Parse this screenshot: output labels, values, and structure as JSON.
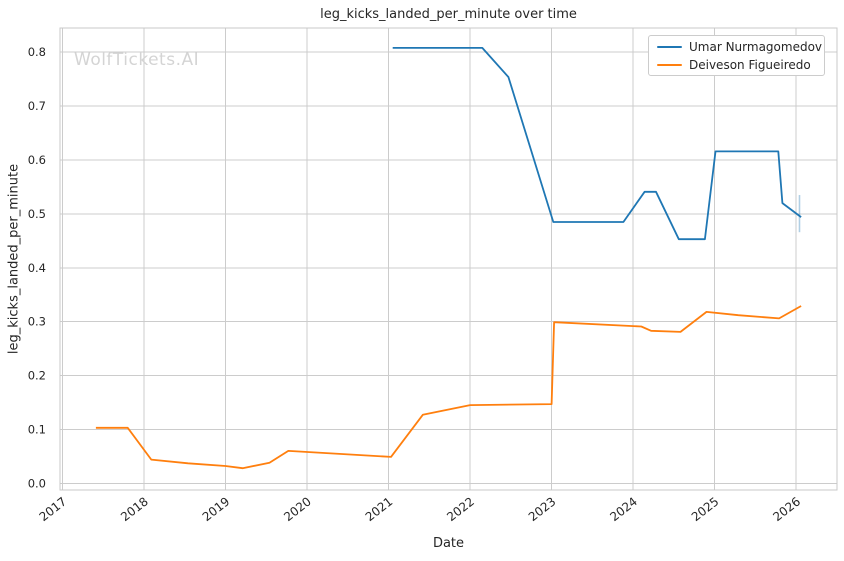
{
  "watermark": "WolfTickets.AI",
  "colors": {
    "text": "#262626",
    "grid": "#cccccc",
    "frame": "#c9c9c9",
    "watermark": "#d4d4d4",
    "background": "#ffffff"
  },
  "chart_data": {
    "type": "line",
    "title": "leg_kicks_landed_per_minute over time",
    "xlabel": "Date",
    "ylabel": "leg_kicks_landed_per_minute",
    "grid": true,
    "legend_position": "upper right",
    "xlim": [
      2016.97,
      2026.5
    ],
    "ylim": [
      -0.0125,
      0.845
    ],
    "x_ticks": [
      2017,
      2018,
      2019,
      2020,
      2021,
      2022,
      2023,
      2024,
      2025,
      2026
    ],
    "x_tick_labels": [
      "2017",
      "2018",
      "2019",
      "2020",
      "2021",
      "2022",
      "2023",
      "2024",
      "2025",
      "2026"
    ],
    "y_ticks": [
      0.0,
      0.1,
      0.2,
      0.3,
      0.4,
      0.5,
      0.6,
      0.7,
      0.8
    ],
    "y_tick_labels": [
      "0.0",
      "0.1",
      "0.2",
      "0.3",
      "0.4",
      "0.5",
      "0.6",
      "0.7",
      "0.8"
    ],
    "series": [
      {
        "name": "Umar Nurmagomedov",
        "color": "#1f77b4",
        "points": [
          [
            2021.05,
            0.808
          ],
          [
            2022.15,
            0.808
          ],
          [
            2022.47,
            0.754
          ],
          [
            2023.02,
            0.485
          ],
          [
            2023.88,
            0.485
          ],
          [
            2024.14,
            0.541
          ],
          [
            2024.28,
            0.541
          ],
          [
            2024.56,
            0.453
          ],
          [
            2024.88,
            0.453
          ],
          [
            2025.01,
            0.616
          ],
          [
            2025.78,
            0.616
          ],
          [
            2025.83,
            0.52
          ],
          [
            2026.06,
            0.494
          ]
        ],
        "end_tick": {
          "x": 2026.04,
          "y_from": 0.466,
          "y_to": 0.535
        }
      },
      {
        "name": "Deiveson Figueiredo",
        "color": "#ff7f0e",
        "points": [
          [
            2017.41,
            0.103
          ],
          [
            2017.8,
            0.103
          ],
          [
            2018.09,
            0.044
          ],
          [
            2018.54,
            0.037
          ],
          [
            2019.0,
            0.032
          ],
          [
            2019.21,
            0.028
          ],
          [
            2019.54,
            0.038
          ],
          [
            2019.77,
            0.06
          ],
          [
            2021.03,
            0.049
          ],
          [
            2021.42,
            0.127
          ],
          [
            2022.0,
            0.145
          ],
          [
            2023.0,
            0.147
          ],
          [
            2023.03,
            0.299
          ],
          [
            2024.1,
            0.291
          ],
          [
            2024.22,
            0.283
          ],
          [
            2024.58,
            0.281
          ],
          [
            2024.9,
            0.318
          ],
          [
            2025.29,
            0.312
          ],
          [
            2025.79,
            0.306
          ],
          [
            2026.06,
            0.329
          ]
        ]
      }
    ]
  }
}
